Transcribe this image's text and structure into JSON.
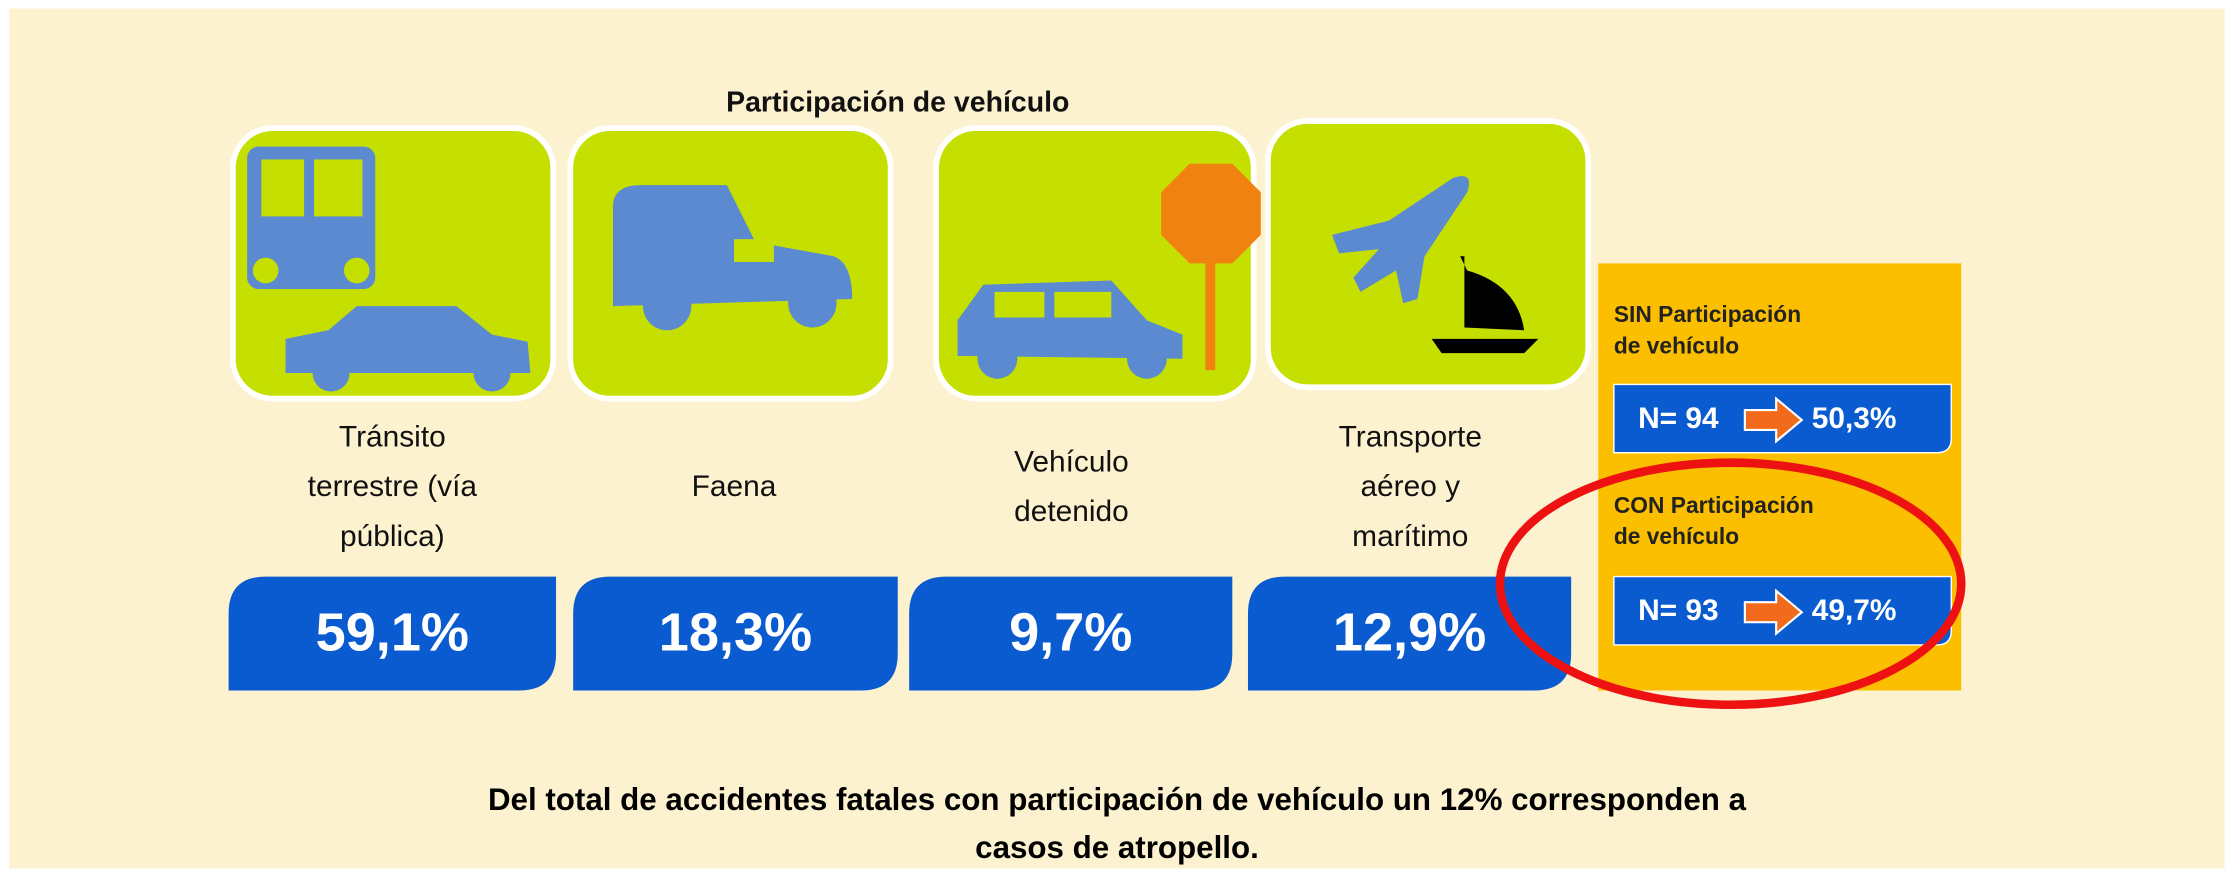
{
  "title": "Participación de vehículo",
  "categories": [
    {
      "label_lines": [
        "Tránsito",
        "terrestre (vía",
        "pública)"
      ],
      "value": "59,1%"
    },
    {
      "label_lines": [
        "Faena"
      ],
      "value": "18,3%"
    },
    {
      "label_lines": [
        "Vehículo",
        "detenido"
      ],
      "value": "9,7%"
    },
    {
      "label_lines": [
        "Transporte",
        "aéreo y",
        "marítimo"
      ],
      "value": "12,9%"
    }
  ],
  "side_panel": {
    "sin": {
      "label_lines": [
        "SIN Participación",
        "de vehículo"
      ],
      "n": "N= 94",
      "percent": "50,3%"
    },
    "con": {
      "label_lines": [
        "CON Participación",
        "de vehículo"
      ],
      "n": "N= 93",
      "percent": "49,7%"
    }
  },
  "footer_lines": [
    "Del total de accidentes fatales con participación de vehículo un 12% corresponden a",
    "casos de atropello."
  ]
}
